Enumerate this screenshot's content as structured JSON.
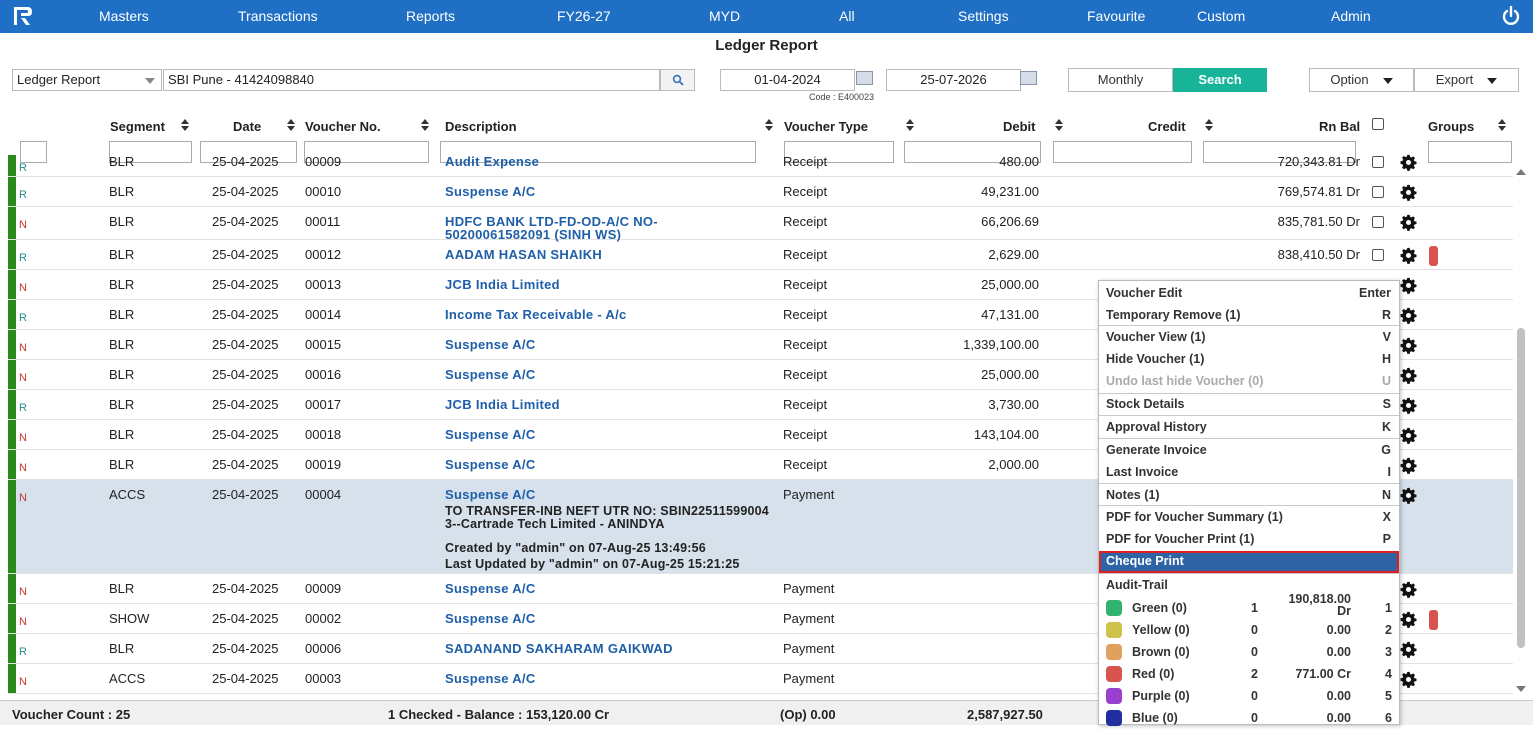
{
  "nav": {
    "items": [
      "Masters",
      "Transactions",
      "Reports",
      "FY26-27",
      "MYD",
      "All",
      "Settings",
      "Favourite",
      "Custom",
      "Admin"
    ]
  },
  "page_title": "Ledger Report",
  "filters": {
    "report_type": "Ledger Report",
    "account": "SBI Pune - 41424098840",
    "from_date": "01-04-2024",
    "to_date": "25-07-2026",
    "code_label": "Code : E400023",
    "monthly_label": "Monthly",
    "search_label": "Search",
    "option_label": "Option",
    "export_label": "Export"
  },
  "columns": {
    "segment": "Segment",
    "date": "Date",
    "voucher_no": "Voucher No.",
    "description": "Description",
    "voucher_type": "Voucher Type",
    "debit": "Debit",
    "credit": "Credit",
    "rn_bal": "Rn Bal",
    "groups": "Groups"
  },
  "rows": [
    {
      "flag": "R",
      "segment": "BLR",
      "date": "25-04-2025",
      "voucher": "00009",
      "desc": "Audit Expense",
      "type": "Receipt",
      "debit": "480.00",
      "rnbal": "720,343.81 Dr"
    },
    {
      "flag": "R",
      "segment": "BLR",
      "date": "25-04-2025",
      "voucher": "00010",
      "desc": "Suspense A/C",
      "type": "Receipt",
      "debit": "49,231.00",
      "rnbal": "769,574.81 Dr"
    },
    {
      "flag": "N",
      "segment": "BLR",
      "date": "25-04-2025",
      "voucher": "00011",
      "desc": "HDFC BANK LTD-FD-OD-A/C NO-",
      "desc2": "50200061582091 (SINH WS)",
      "type": "Receipt",
      "debit": "66,206.69",
      "rnbal": "835,781.50 Dr"
    },
    {
      "flag": "R",
      "segment": "BLR",
      "date": "25-04-2025",
      "voucher": "00012",
      "desc": "AADAM HASAN SHAIKH",
      "type": "Receipt",
      "debit": "2,629.00",
      "rnbal": "838,410.50 Dr"
    },
    {
      "flag": "N",
      "segment": "BLR",
      "date": "25-04-2025",
      "voucher": "00013",
      "desc": "JCB India Limited",
      "type": "Receipt",
      "debit": "25,000.00",
      "rnbal": ""
    },
    {
      "flag": "R",
      "segment": "BLR",
      "date": "25-04-2025",
      "voucher": "00014",
      "desc": "Income Tax Receivable - A/c",
      "type": "Receipt",
      "debit": "47,131.00",
      "rnbal": ""
    },
    {
      "flag": "N",
      "segment": "BLR",
      "date": "25-04-2025",
      "voucher": "00015",
      "desc": "Suspense A/C",
      "type": "Receipt",
      "debit": "1,339,100.00",
      "rnbal": ""
    },
    {
      "flag": "N",
      "segment": "BLR",
      "date": "25-04-2025",
      "voucher": "00016",
      "desc": "Suspense A/C",
      "type": "Receipt",
      "debit": "25,000.00",
      "rnbal": ""
    },
    {
      "flag": "R",
      "segment": "BLR",
      "date": "25-04-2025",
      "voucher": "00017",
      "desc": "JCB India Limited",
      "type": "Receipt",
      "debit": "3,730.00",
      "rnbal": ""
    },
    {
      "flag": "N",
      "segment": "BLR",
      "date": "25-04-2025",
      "voucher": "00018",
      "desc": "Suspense A/C",
      "type": "Receipt",
      "debit": "143,104.00",
      "rnbal": ""
    },
    {
      "flag": "N",
      "segment": "BLR",
      "date": "25-04-2025",
      "voucher": "00019",
      "desc": "Suspense A/C",
      "type": "Receipt",
      "debit": "2,000.00",
      "rnbal": ""
    },
    {
      "flag": "N",
      "segment": "ACCS",
      "date": "25-04-2025",
      "voucher": "00004",
      "desc": "Suspense A/C",
      "type": "Payment",
      "debit": "",
      "rnbal": "",
      "narration1": "TO TRANSFER-INB NEFT UTR NO: SBIN22511599004",
      "narration2": "3--Cartrade Tech Limited - ANINDYA",
      "created": "Created by \"admin\" on 07-Aug-25 13:49:56",
      "updated": "Last Updated by \"admin\" on 07-Aug-25 15:21:25"
    },
    {
      "flag": "N",
      "segment": "BLR",
      "date": "25-04-2025",
      "voucher": "00009",
      "desc": "Suspense A/C",
      "type": "Payment",
      "debit": "",
      "rnbal": ""
    },
    {
      "flag": "N",
      "segment": "SHOW",
      "date": "25-04-2025",
      "voucher": "00002",
      "desc": "Suspense A/C",
      "type": "Payment",
      "debit": "",
      "rnbal": ""
    },
    {
      "flag": "R",
      "segment": "BLR",
      "date": "25-04-2025",
      "voucher": "00006",
      "desc": "SADANAND SAKHARAM GAIKWAD",
      "type": "Payment",
      "debit": "",
      "rnbal": ""
    },
    {
      "flag": "N",
      "segment": "ACCS",
      "date": "25-04-2025",
      "voucher": "00003",
      "desc": "Suspense A/C",
      "type": "Payment",
      "debit": "",
      "rnbal": ""
    }
  ],
  "footer": {
    "voucher_count": "Voucher Count : 25",
    "balance": "1 Checked - Balance : 153,120.00 Cr",
    "opening": "(Op) 0.00",
    "debit_total": "2,587,927.50"
  },
  "context_menu": {
    "items": [
      {
        "label": "Voucher Edit",
        "key": "Enter"
      },
      {
        "label": "Temporary Remove (1)",
        "key": "R"
      },
      {
        "label": "Voucher View (1)",
        "key": "V"
      },
      {
        "label": "Hide Voucher (1)",
        "key": "H"
      },
      {
        "label": "Undo last hide Voucher (0)",
        "key": "U"
      },
      {
        "label": "Stock Details",
        "key": "S"
      },
      {
        "label": "Approval History",
        "key": "K"
      },
      {
        "label": "Generate Invoice",
        "key": "G"
      },
      {
        "label": "Last Invoice",
        "key": "I"
      },
      {
        "label": "Notes (1)",
        "key": "N"
      },
      {
        "label": "PDF for Voucher Summary (1)",
        "key": "X"
      },
      {
        "label": "PDF for Voucher Print (1)",
        "key": "P"
      },
      {
        "label": "Cheque Print",
        "key": ""
      },
      {
        "label": "Audit-Trail",
        "key": ""
      }
    ],
    "colors": [
      {
        "name": "Green (0)",
        "count": "1",
        "amount": "190,818.00 Dr",
        "key": "1",
        "color": "#2fb36f"
      },
      {
        "name": "Yellow (0)",
        "count": "0",
        "amount": "0.00",
        "key": "2",
        "color": "#cfc24a"
      },
      {
        "name": "Brown (0)",
        "count": "0",
        "amount": "0.00",
        "key": "3",
        "color": "#e0a060"
      },
      {
        "name": "Red (0)",
        "count": "2",
        "amount": "771.00 Cr",
        "key": "4",
        "color": "#d9534f"
      },
      {
        "name": "Purple (0)",
        "count": "0",
        "amount": "0.00",
        "key": "5",
        "color": "#9b3fcf"
      },
      {
        "name": "Blue (0)",
        "count": "0",
        "amount": "0.00",
        "key": "6",
        "color": "#1f2f9f"
      }
    ]
  },
  "colors": {
    "nav_bg": "#1f6fc4",
    "search_btn": "#18b49a",
    "row_bar": "#2a8a1c",
    "link": "#1f5fa8",
    "menu_highlight": "#2e64a6"
  }
}
